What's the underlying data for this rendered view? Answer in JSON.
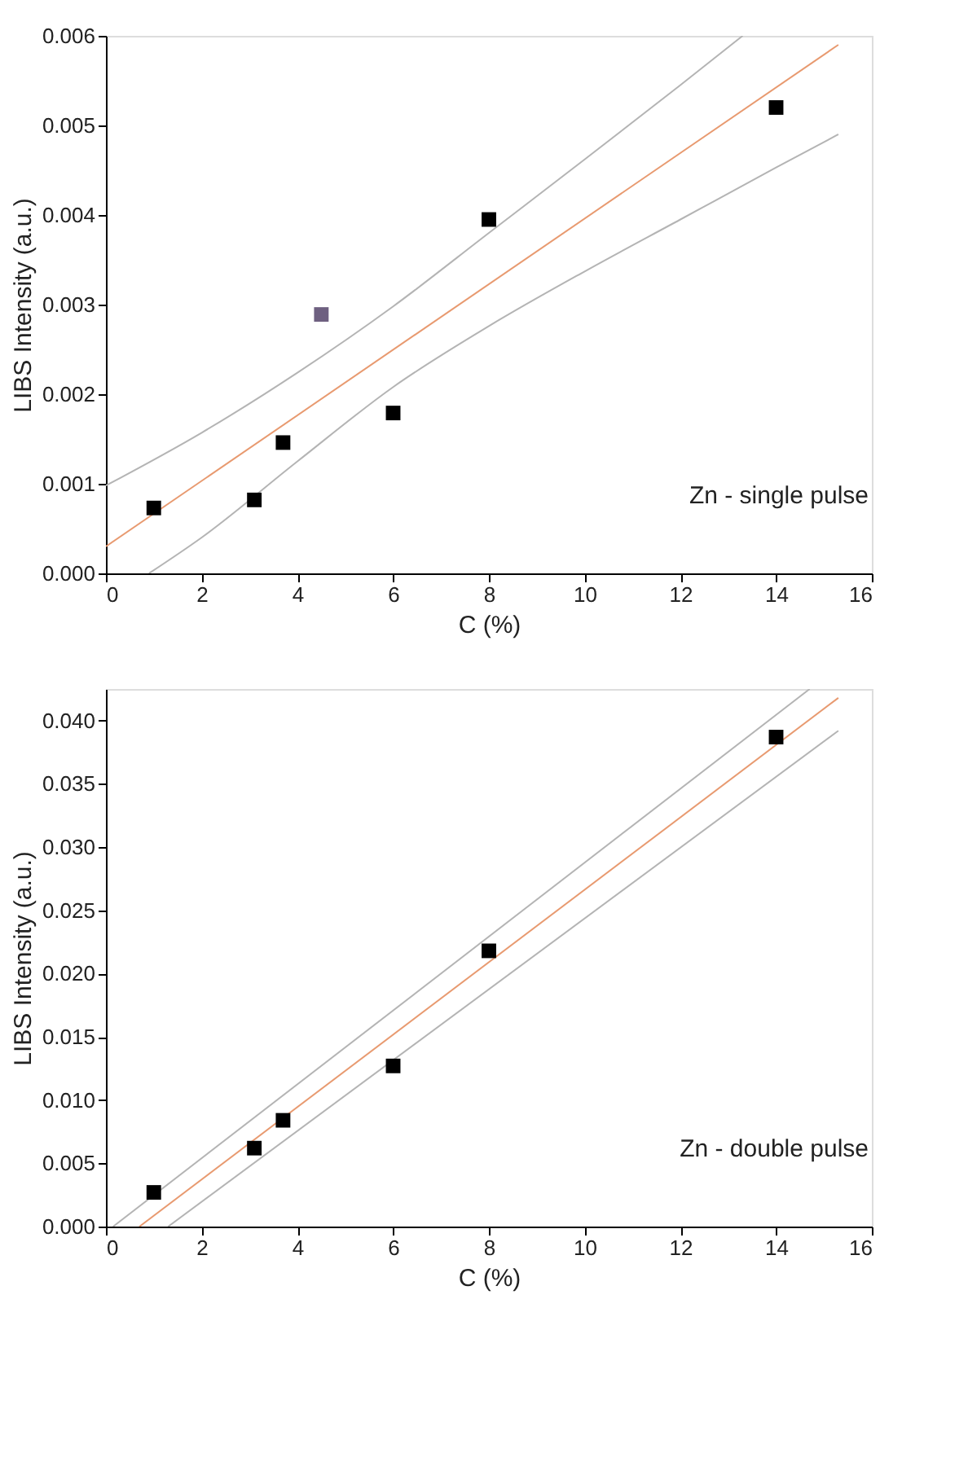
{
  "chart_data": [
    {
      "type": "scatter",
      "xlabel": "C (%)",
      "ylabel": "LIBS Intensity (a.u.)",
      "xlim": [
        0,
        16
      ],
      "xticks": [
        0,
        2,
        4,
        6,
        8,
        10,
        12,
        14,
        16
      ],
      "ylim": [
        0,
        0.006
      ],
      "yticks": [
        {
          "value": 0,
          "label": "0.000"
        },
        {
          "value": 0.001,
          "label": "0.001"
        },
        {
          "value": 0.002,
          "label": "0.002"
        },
        {
          "value": 0.003,
          "label": "0.003"
        },
        {
          "value": 0.004,
          "label": "0.004"
        },
        {
          "value": 0.005,
          "label": "0.005"
        },
        {
          "value": 0.006,
          "label": "0.006"
        }
      ],
      "annotations": [
        "Zn - single pulse"
      ],
      "series": [
        {
          "type": "line",
          "marker": "none",
          "color": "#b4b4b4",
          "x": [
            0,
            2,
            4,
            6,
            8,
            10,
            12,
            13.3
          ],
          "values": [
            0.00098,
            0.00157,
            0.00224,
            0.00298,
            0.0038,
            0.00462,
            0.00545,
            0.006
          ]
        },
        {
          "type": "line",
          "marker": "none",
          "color": "#b4b4b4",
          "x": [
            0.9,
            2,
            4,
            6,
            8,
            10,
            12,
            14,
            15.3
          ],
          "values": [
            0.0,
            0.0004,
            0.00125,
            0.00208,
            0.00276,
            0.00337,
            0.00395,
            0.00453,
            0.0049
          ]
        },
        {
          "type": "line",
          "marker": "none",
          "color": "#e89a70",
          "x": [
            0,
            15.3
          ],
          "values": [
            0.0003,
            0.0059
          ]
        },
        {
          "marker": "square",
          "colors": [
            "#000000",
            "#000000",
            "#000000",
            "#6e6080",
            "#000000",
            "#000000",
            "#000000"
          ],
          "x": [
            1,
            3.1,
            3.7,
            4.5,
            6,
            8,
            14
          ],
          "values": [
            0.00073,
            0.00082,
            0.00146,
            0.00289,
            0.00179,
            0.00395,
            0.0052
          ]
        }
      ]
    },
    {
      "type": "scatter",
      "xlabel": "C (%)",
      "ylabel": "LIBS Intensity (a.u.)",
      "xlim": [
        0,
        16
      ],
      "xticks": [
        0,
        2,
        4,
        6,
        8,
        10,
        12,
        14,
        16
      ],
      "ylim": [
        0,
        0.0425
      ],
      "yticks": [
        {
          "value": 0,
          "label": "0.000"
        },
        {
          "value": 0.005,
          "label": "0.005"
        },
        {
          "value": 0.01,
          "label": "0.010"
        },
        {
          "value": 0.015,
          "label": "0.015"
        },
        {
          "value": 0.02,
          "label": "0.020"
        },
        {
          "value": 0.025,
          "label": "0.025"
        },
        {
          "value": 0.03,
          "label": "0.030"
        },
        {
          "value": 0.035,
          "label": "0.035"
        },
        {
          "value": 0.04,
          "label": "0.040"
        }
      ],
      "annotations": [
        "Zn - double pulse"
      ],
      "series": [
        {
          "type": "line",
          "marker": "none",
          "color": "#b4b4b4",
          "x": [
            0.15,
            14.7
          ],
          "values": [
            0.0,
            0.0425
          ]
        },
        {
          "type": "line",
          "marker": "none",
          "color": "#b4b4b4",
          "x": [
            1.3,
            15.3
          ],
          "values": [
            0.0,
            0.0392
          ]
        },
        {
          "type": "line",
          "marker": "none",
          "color": "#e89a70",
          "x": [
            0.7,
            15.3
          ],
          "values": [
            0.0,
            0.0418
          ]
        },
        {
          "marker": "square",
          "colors": [
            "#000000",
            "#000000",
            "#000000",
            "#000000",
            "#000000",
            "#000000"
          ],
          "x": [
            1,
            3.1,
            3.7,
            6,
            8,
            14
          ],
          "values": [
            0.0027,
            0.0062,
            0.0084,
            0.0127,
            0.0218,
            0.0387
          ]
        }
      ]
    }
  ]
}
